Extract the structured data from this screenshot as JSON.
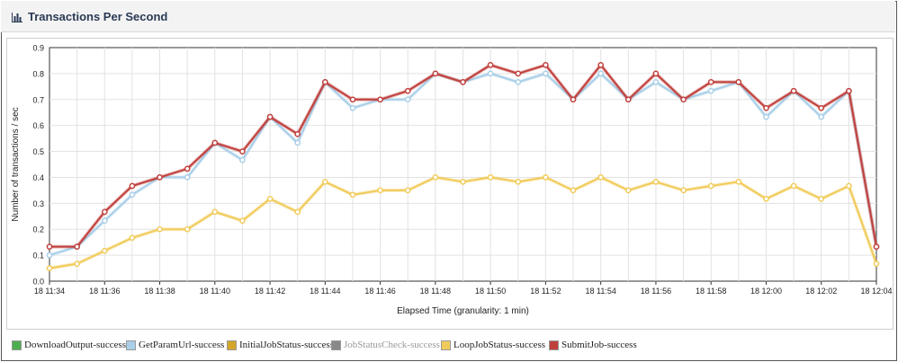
{
  "header": {
    "title": "Transactions Per Second",
    "icon": "bar-chart-icon"
  },
  "chart_data": {
    "type": "line",
    "title": "Transactions Per Second",
    "xlabel": "Elapsed Time (granularity: 1 min)",
    "ylabel": "Number of transactions / sec",
    "ylim": [
      0,
      0.9
    ],
    "yticks": [
      "0.0",
      "0.1",
      "0.2",
      "0.3",
      "0.4",
      "0.5",
      "0.6",
      "0.7",
      "0.8",
      "0.9"
    ],
    "grid": true,
    "x": [
      "18 11:34",
      "18 11:35",
      "18 11:36",
      "18 11:37",
      "18 11:38",
      "18 11:39",
      "18 11:40",
      "18 11:41",
      "18 11:42",
      "18 11:43",
      "18 11:44",
      "18 11:45",
      "18 11:46",
      "18 11:47",
      "18 11:48",
      "18 11:49",
      "18 11:50",
      "18 11:51",
      "18 11:52",
      "18 11:53",
      "18 11:54",
      "18 11:55",
      "18 11:56",
      "18 11:57",
      "18 11:58",
      "18 11:59",
      "18 12:00",
      "18 12:01",
      "18 12:02",
      "18 12:03",
      "18 12:04"
    ],
    "xticks": [
      "18 11:34",
      "18 11:36",
      "18 11:38",
      "18 11:40",
      "18 11:42",
      "18 11:44",
      "18 11:46",
      "18 11:48",
      "18 11:50",
      "18 11:52",
      "18 11:54",
      "18 11:56",
      "18 11:58",
      "18 12:00",
      "18 12:02",
      "18 12:04"
    ],
    "series": [
      {
        "name": "GetParamUrl-success",
        "color": "#a9cfe8",
        "values": [
          0.1,
          0.133,
          0.233,
          0.333,
          0.4,
          0.4,
          0.533,
          0.467,
          0.633,
          0.533,
          0.767,
          0.667,
          0.7,
          0.7,
          0.8,
          0.767,
          0.8,
          0.767,
          0.8,
          0.7,
          0.8,
          0.7,
          0.767,
          0.7,
          0.733,
          0.767,
          0.633,
          0.733,
          0.633,
          0.733,
          0.133
        ]
      },
      {
        "name": "LoopJobStatus-success",
        "color": "#f1cb5a",
        "values": [
          0.05,
          0.067,
          0.117,
          0.167,
          0.2,
          0.2,
          0.267,
          0.233,
          0.317,
          0.267,
          0.383,
          0.333,
          0.35,
          0.35,
          0.4,
          0.383,
          0.4,
          0.383,
          0.4,
          0.35,
          0.4,
          0.35,
          0.383,
          0.35,
          0.367,
          0.383,
          0.317,
          0.367,
          0.317,
          0.367,
          0.067
        ]
      },
      {
        "name": "SubmitJob-success",
        "color": "#c0403c",
        "values": [
          0.133,
          0.133,
          0.267,
          0.367,
          0.4,
          0.433,
          0.533,
          0.5,
          0.633,
          0.567,
          0.767,
          0.7,
          0.7,
          0.733,
          0.8,
          0.767,
          0.833,
          0.8,
          0.833,
          0.7,
          0.833,
          0.7,
          0.8,
          0.7,
          0.767,
          0.767,
          0.667,
          0.733,
          0.667,
          0.733,
          0.133
        ]
      }
    ],
    "legend": [
      {
        "name": "DownloadOutput-success",
        "color": "#4caf50",
        "active": true
      },
      {
        "name": "GetParamUrl-success",
        "color": "#a9cfe8",
        "active": true
      },
      {
        "name": "InitialJobStatus-success",
        "color": "#d4a52a",
        "active": true
      },
      {
        "name": "JobStatusCheck-success",
        "color": "#888888",
        "active": false
      },
      {
        "name": "LoopJobStatus-success",
        "color": "#f1cb5a",
        "active": true
      },
      {
        "name": "SubmitJob-success",
        "color": "#c0403c",
        "active": true
      }
    ],
    "legend_position": "bottom"
  }
}
